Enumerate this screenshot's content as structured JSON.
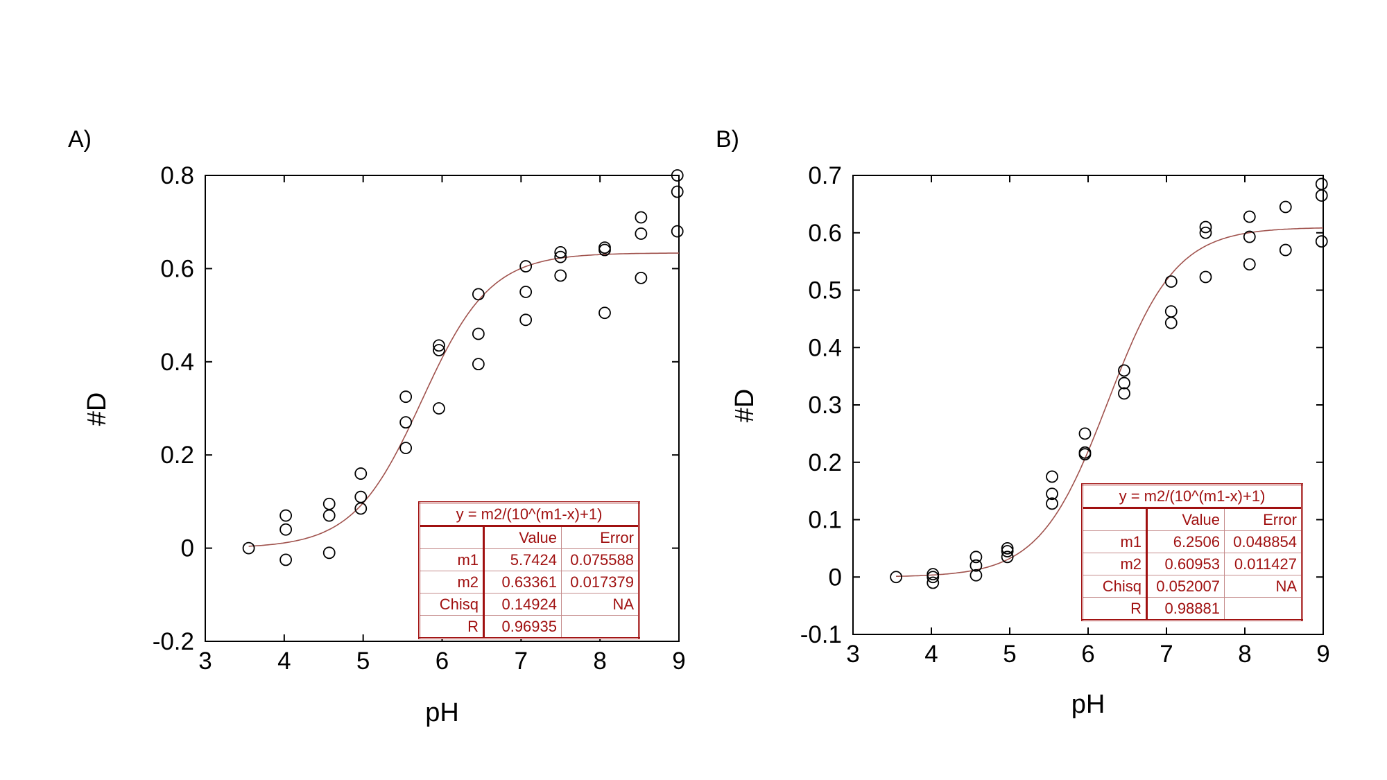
{
  "colors": {
    "fit_curve": "#a0524d",
    "table_text": "#a01010",
    "points": "#000000"
  },
  "chart_data": [
    {
      "type": "scatter",
      "panel_label": "A)",
      "xlabel": "pH",
      "ylabel": "#D",
      "xlim": [
        3,
        9
      ],
      "ylim": [
        -0.2,
        0.8
      ],
      "xticks": [
        "3",
        "4",
        "5",
        "6",
        "7",
        "8",
        "9"
      ],
      "yticks": [
        "-0.2",
        "0",
        "0.2",
        "0.4",
        "0.6",
        "0.8"
      ],
      "points": [
        [
          3.55,
          0.0
        ],
        [
          4.02,
          0.07
        ],
        [
          4.02,
          0.04
        ],
        [
          4.02,
          -0.025
        ],
        [
          4.57,
          0.095
        ],
        [
          4.57,
          0.07
        ],
        [
          4.57,
          -0.01
        ],
        [
          4.97,
          0.16
        ],
        [
          4.97,
          0.11
        ],
        [
          4.97,
          0.085
        ],
        [
          5.54,
          0.325
        ],
        [
          5.54,
          0.27
        ],
        [
          5.54,
          0.215
        ],
        [
          5.96,
          0.435
        ],
        [
          5.96,
          0.425
        ],
        [
          5.96,
          0.3
        ],
        [
          6.46,
          0.545
        ],
        [
          6.46,
          0.46
        ],
        [
          6.46,
          0.395
        ],
        [
          7.06,
          0.605
        ],
        [
          7.06,
          0.55
        ],
        [
          7.06,
          0.49
        ],
        [
          7.5,
          0.635
        ],
        [
          7.5,
          0.625
        ],
        [
          7.5,
          0.585
        ],
        [
          8.06,
          0.645
        ],
        [
          8.06,
          0.64
        ],
        [
          8.06,
          0.505
        ],
        [
          8.52,
          0.71
        ],
        [
          8.52,
          0.675
        ],
        [
          8.52,
          0.58
        ],
        [
          8.98,
          0.8
        ],
        [
          8.98,
          0.765
        ],
        [
          8.98,
          0.68
        ]
      ],
      "fit": {
        "equation": "y = m2/(10^(m1-x)+1)",
        "m1": 5.7424,
        "m2": 0.63361,
        "x_range": [
          3.55,
          9.0
        ]
      },
      "fit_table": {
        "equation": "y = m2/(10^(m1-x)+1)",
        "headers": [
          "",
          "Value",
          "Error"
        ],
        "rows": [
          [
            "m1",
            "5.7424",
            "0.075588"
          ],
          [
            "m2",
            "0.63361",
            "0.017379"
          ],
          [
            "Chisq",
            "0.14924",
            "NA"
          ],
          [
            "R",
            "0.96935",
            ""
          ]
        ]
      }
    },
    {
      "type": "scatter",
      "panel_label": "B)",
      "xlabel": "pH",
      "ylabel": "#D",
      "xlim": [
        3,
        9
      ],
      "ylim": [
        -0.1,
        0.7
      ],
      "xticks": [
        "3",
        "4",
        "5",
        "6",
        "7",
        "8",
        "9"
      ],
      "yticks": [
        "-0.1",
        "0",
        "0.1",
        "0.2",
        "0.3",
        "0.4",
        "0.5",
        "0.6",
        "0.7"
      ],
      "points": [
        [
          3.55,
          0.0
        ],
        [
          4.02,
          0.005
        ],
        [
          4.02,
          0.0
        ],
        [
          4.02,
          -0.01
        ],
        [
          4.57,
          0.035
        ],
        [
          4.57,
          0.02
        ],
        [
          4.57,
          0.003
        ],
        [
          4.97,
          0.05
        ],
        [
          4.97,
          0.045
        ],
        [
          4.97,
          0.035
        ],
        [
          5.54,
          0.175
        ],
        [
          5.54,
          0.145
        ],
        [
          5.54,
          0.128
        ],
        [
          5.96,
          0.25
        ],
        [
          5.96,
          0.217
        ],
        [
          5.96,
          0.214
        ],
        [
          6.46,
          0.36
        ],
        [
          6.46,
          0.338
        ],
        [
          6.46,
          0.32
        ],
        [
          7.06,
          0.515
        ],
        [
          7.06,
          0.463
        ],
        [
          7.06,
          0.443
        ],
        [
          7.5,
          0.61
        ],
        [
          7.5,
          0.6
        ],
        [
          7.5,
          0.523
        ],
        [
          8.06,
          0.628
        ],
        [
          8.06,
          0.593
        ],
        [
          8.06,
          0.545
        ],
        [
          8.52,
          0.645
        ],
        [
          8.52,
          0.57
        ],
        [
          8.98,
          0.685
        ],
        [
          8.98,
          0.665
        ],
        [
          8.98,
          0.585
        ]
      ],
      "fit": {
        "equation": "y = m2/(10^(m1-x)+1)",
        "m1": 6.2506,
        "m2": 0.60953,
        "x_range": [
          3.55,
          9.0
        ]
      },
      "fit_table": {
        "equation": "y = m2/(10^(m1-x)+1)",
        "headers": [
          "",
          "Value",
          "Error"
        ],
        "rows": [
          [
            "m1",
            "6.2506",
            "0.048854"
          ],
          [
            "m2",
            "0.60953",
            "0.011427"
          ],
          [
            "Chisq",
            "0.052007",
            "NA"
          ],
          [
            "R",
            "0.98881",
            ""
          ]
        ]
      }
    }
  ]
}
